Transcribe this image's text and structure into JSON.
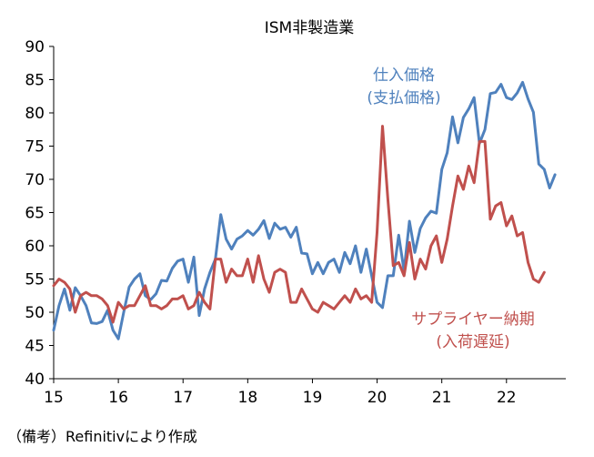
{
  "chart_data": {
    "type": "line",
    "title": "ISM非製造業",
    "xlabel": "",
    "ylabel": "",
    "ylim": [
      40,
      90
    ],
    "yticks": [
      40,
      45,
      50,
      55,
      60,
      65,
      70,
      75,
      80,
      85,
      90
    ],
    "xlim": [
      2015,
      2022.917
    ],
    "xticks": [
      {
        "value": 2015,
        "label": "15"
      },
      {
        "value": 2016,
        "label": "16"
      },
      {
        "value": 2017,
        "label": "17"
      },
      {
        "value": 2018,
        "label": "18"
      },
      {
        "value": 2019,
        "label": "19"
      },
      {
        "value": 2020,
        "label": "20"
      },
      {
        "value": 2021,
        "label": "21"
      },
      {
        "value": 2022,
        "label": "22"
      }
    ],
    "grid": false,
    "series": [
      {
        "name": "仕入価格(支払価格)",
        "label_lines": [
          "仕入価格",
          "(支払価格)"
        ],
        "color": "#4f81bd",
        "start": 2015,
        "step": 0.08333,
        "values": [
          47.3,
          51.0,
          53.5,
          50.3,
          53.7,
          52.5,
          51.0,
          48.4,
          48.3,
          48.6,
          50.3,
          47.3,
          46.0,
          50.0,
          53.8,
          55.0,
          55.8,
          52.5,
          51.9,
          52.8,
          54.8,
          54.7,
          56.6,
          57.7,
          58.0,
          54.5,
          58.3,
          49.5,
          53.5,
          56.0,
          58.0,
          64.7,
          61.0,
          59.5,
          61.0,
          61.5,
          62.3,
          61.6,
          62.5,
          63.8,
          61.1,
          63.4,
          62.5,
          62.8,
          61.3,
          62.8,
          58.9,
          58.8,
          55.8,
          57.5,
          55.8,
          57.5,
          58.0,
          56.0,
          59.0,
          57.3,
          60.0,
          56.0,
          59.5,
          55.5,
          51.5,
          50.7,
          55.5,
          55.5,
          61.6,
          56.2,
          63.7,
          59.0,
          62.6,
          64.2,
          65.2,
          64.9,
          71.5,
          74.0,
          79.4,
          75.5,
          79.3,
          80.6,
          82.3,
          75.4,
          77.5,
          82.9,
          83.1,
          84.3,
          82.3,
          82.0,
          83.0,
          84.6,
          82.1,
          80.1,
          72.3,
          71.5,
          68.7,
          70.7
        ]
      },
      {
        "name": "サプライヤー納期(入荷遅延)",
        "label_lines": [
          "サプライヤー納期",
          "(入荷遅延)"
        ],
        "color": "#c0504d",
        "start": 2015,
        "step": 0.08333,
        "values": [
          54.0,
          55.0,
          54.5,
          53.5,
          50.0,
          52.5,
          53.0,
          52.5,
          52.5,
          52.0,
          51.0,
          48.5,
          51.5,
          50.5,
          51.0,
          51.0,
          52.5,
          54.0,
          51.0,
          51.0,
          50.5,
          51.0,
          52.0,
          52.0,
          52.5,
          50.5,
          51.0,
          53.0,
          51.5,
          50.5,
          58.0,
          58.0,
          54.5,
          56.5,
          55.5,
          55.5,
          58.0,
          54.5,
          58.5,
          55.0,
          53.0,
          56.0,
          56.5,
          56.0,
          51.5,
          51.5,
          53.5,
          52.0,
          50.5,
          50.0,
          51.5,
          51.0,
          50.5,
          51.5,
          52.5,
          51.5,
          53.5,
          52.0,
          52.5,
          51.5,
          62.0,
          78.0,
          67.0,
          57.0,
          57.5,
          55.5,
          60.5,
          55.0,
          58.0,
          56.5,
          60.0,
          61.5,
          57.5,
          61.0,
          66.0,
          70.5,
          68.5,
          72.0,
          69.5,
          75.7,
          75.7,
          64.0,
          66.0,
          66.5,
          63.0,
          64.5,
          61.5,
          62.0,
          57.5,
          55.0,
          54.5,
          56.0
        ]
      }
    ]
  },
  "source_note": "（備考）Refinitivにより作成"
}
